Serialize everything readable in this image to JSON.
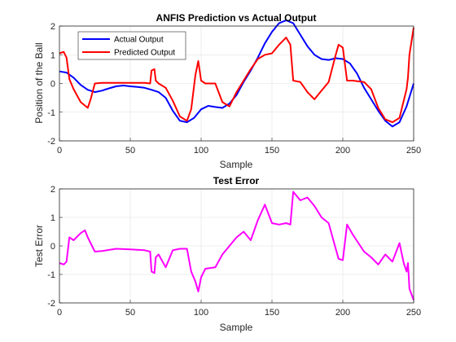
{
  "chart_data": [
    {
      "type": "line",
      "title": "ANFIS Prediction vs Actual Output",
      "xlabel": "Sample",
      "ylabel": "Position of the Ball",
      "xlim": [
        0,
        250
      ],
      "ylim": [
        -2,
        2
      ],
      "xticks": [
        0,
        50,
        100,
        150,
        200,
        250
      ],
      "yticks": [
        -2,
        -1,
        0,
        1,
        2
      ],
      "grid": true,
      "legend": "top-left",
      "series": [
        {
          "name": "Actual Output",
          "color": "#0000ff",
          "points": [
            [
              0,
              0.42
            ],
            [
              5,
              0.38
            ],
            [
              10,
              0.2
            ],
            [
              15,
              -0.05
            ],
            [
              20,
              -0.22
            ],
            [
              25,
              -0.3
            ],
            [
              30,
              -0.25
            ],
            [
              35,
              -0.17
            ],
            [
              40,
              -0.1
            ],
            [
              45,
              -0.07
            ],
            [
              50,
              -0.1
            ],
            [
              55,
              -0.12
            ],
            [
              60,
              -0.15
            ],
            [
              65,
              -0.22
            ],
            [
              70,
              -0.3
            ],
            [
              75,
              -0.5
            ],
            [
              80,
              -0.95
            ],
            [
              85,
              -1.3
            ],
            [
              90,
              -1.35
            ],
            [
              95,
              -1.2
            ],
            [
              100,
              -0.9
            ],
            [
              105,
              -0.78
            ],
            [
              110,
              -0.82
            ],
            [
              115,
              -0.85
            ],
            [
              120,
              -0.7
            ],
            [
              125,
              -0.4
            ],
            [
              130,
              0.05
            ],
            [
              135,
              0.45
            ],
            [
              140,
              0.9
            ],
            [
              145,
              1.4
            ],
            [
              150,
              1.8
            ],
            [
              155,
              2.1
            ],
            [
              160,
              2.2
            ],
            [
              165,
              2.1
            ],
            [
              170,
              1.7
            ],
            [
              175,
              1.3
            ],
            [
              180,
              1.0
            ],
            [
              185,
              0.85
            ],
            [
              190,
              0.82
            ],
            [
              195,
              0.88
            ],
            [
              200,
              0.85
            ],
            [
              205,
              0.7
            ],
            [
              210,
              0.35
            ],
            [
              215,
              -0.15
            ],
            [
              220,
              -0.55
            ],
            [
              225,
              -0.95
            ],
            [
              230,
              -1.3
            ],
            [
              235,
              -1.5
            ],
            [
              240,
              -1.35
            ],
            [
              245,
              -0.8
            ],
            [
              250,
              0.0
            ]
          ]
        },
        {
          "name": "Predicted Output",
          "color": "#ff0000",
          "points": [
            [
              0,
              1.05
            ],
            [
              3,
              1.1
            ],
            [
              5,
              0.9
            ],
            [
              7,
              0.15
            ],
            [
              10,
              -0.2
            ],
            [
              15,
              -0.65
            ],
            [
              20,
              -0.85
            ],
            [
              22,
              -0.55
            ],
            [
              25,
              0.0
            ],
            [
              30,
              0.02
            ],
            [
              40,
              0.02
            ],
            [
              50,
              0.02
            ],
            [
              60,
              0.02
            ],
            [
              64,
              0.0
            ],
            [
              65,
              0.45
            ],
            [
              67,
              0.5
            ],
            [
              68,
              0.1
            ],
            [
              70,
              0.0
            ],
            [
              75,
              -0.15
            ],
            [
              80,
              -0.6
            ],
            [
              85,
              -1.15
            ],
            [
              90,
              -1.3
            ],
            [
              93,
              -0.9
            ],
            [
              96,
              0.3
            ],
            [
              98,
              0.78
            ],
            [
              100,
              0.1
            ],
            [
              103,
              0.0
            ],
            [
              110,
              0.0
            ],
            [
              115,
              -0.65
            ],
            [
              120,
              -0.8
            ],
            [
              125,
              -0.3
            ],
            [
              130,
              0.1
            ],
            [
              135,
              0.5
            ],
            [
              140,
              0.85
            ],
            [
              145,
              1.0
            ],
            [
              150,
              1.05
            ],
            [
              155,
              1.35
            ],
            [
              160,
              1.6
            ],
            [
              163,
              1.35
            ],
            [
              165,
              0.1
            ],
            [
              170,
              0.05
            ],
            [
              175,
              -0.3
            ],
            [
              180,
              -0.55
            ],
            [
              185,
              -0.25
            ],
            [
              190,
              0.05
            ],
            [
              195,
              1.0
            ],
            [
              197,
              1.35
            ],
            [
              200,
              1.25
            ],
            [
              203,
              0.1
            ],
            [
              207,
              0.1
            ],
            [
              215,
              0.05
            ],
            [
              220,
              -0.2
            ],
            [
              225,
              -0.85
            ],
            [
              230,
              -1.25
            ],
            [
              235,
              -1.35
            ],
            [
              240,
              -1.2
            ],
            [
              243,
              -0.6
            ],
            [
              245,
              -0.2
            ],
            [
              246,
              0.2
            ],
            [
              247,
              1.0
            ],
            [
              250,
              1.95
            ]
          ]
        }
      ]
    },
    {
      "type": "line",
      "title": "Test Error",
      "xlabel": "Sample",
      "ylabel": "Test Error",
      "xlim": [
        0,
        250
      ],
      "ylim": [
        -2,
        2
      ],
      "xticks": [
        0,
        50,
        100,
        150,
        200,
        250
      ],
      "yticks": [
        -2,
        -1,
        0,
        1,
        2
      ],
      "grid": true,
      "series": [
        {
          "color": "#ff00ff",
          "points": [
            [
              0,
              -0.6
            ],
            [
              3,
              -0.65
            ],
            [
              5,
              -0.55
            ],
            [
              7,
              0.3
            ],
            [
              10,
              0.2
            ],
            [
              15,
              0.45
            ],
            [
              18,
              0.55
            ],
            [
              20,
              0.3
            ],
            [
              25,
              -0.2
            ],
            [
              30,
              -0.18
            ],
            [
              40,
              -0.1
            ],
            [
              50,
              -0.12
            ],
            [
              60,
              -0.15
            ],
            [
              64,
              -0.2
            ],
            [
              65,
              -0.9
            ],
            [
              67,
              -0.95
            ],
            [
              68,
              -0.4
            ],
            [
              70,
              -0.3
            ],
            [
              75,
              -0.75
            ],
            [
              80,
              -0.15
            ],
            [
              85,
              -0.1
            ],
            [
              90,
              -0.1
            ],
            [
              93,
              -0.9
            ],
            [
              96,
              -1.25
            ],
            [
              98,
              -1.6
            ],
            [
              100,
              -1.1
            ],
            [
              103,
              -0.8
            ],
            [
              110,
              -0.75
            ],
            [
              115,
              -0.3
            ],
            [
              120,
              0.0
            ],
            [
              125,
              0.3
            ],
            [
              130,
              0.5
            ],
            [
              135,
              0.2
            ],
            [
              140,
              0.9
            ],
            [
              145,
              1.45
            ],
            [
              150,
              0.8
            ],
            [
              155,
              0.75
            ],
            [
              160,
              0.8
            ],
            [
              163,
              0.75
            ],
            [
              165,
              1.9
            ],
            [
              170,
              1.6
            ],
            [
              175,
              1.7
            ],
            [
              180,
              1.4
            ],
            [
              185,
              1.0
            ],
            [
              190,
              0.8
            ],
            [
              195,
              -0.1
            ],
            [
              197,
              -0.45
            ],
            [
              200,
              -0.5
            ],
            [
              203,
              0.75
            ],
            [
              207,
              0.4
            ],
            [
              215,
              -0.2
            ],
            [
              220,
              -0.4
            ],
            [
              225,
              -0.65
            ],
            [
              230,
              -0.3
            ],
            [
              235,
              -0.55
            ],
            [
              240,
              0.1
            ],
            [
              243,
              -0.6
            ],
            [
              245,
              -0.9
            ],
            [
              246,
              -0.6
            ],
            [
              247,
              -1.5
            ],
            [
              250,
              -1.9
            ]
          ]
        }
      ]
    }
  ]
}
